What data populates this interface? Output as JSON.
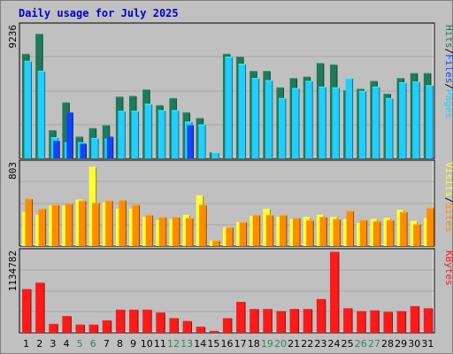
{
  "title": "Daily usage for July 2025",
  "colors": {
    "hits": "#1e7a5b",
    "files": "#21ceff",
    "pages": "#1243ff",
    "visits": "#ff8c00",
    "sites": "#ffff33",
    "kbytes": "#ff1a1a",
    "title": "#0000ff",
    "weekend_day": "#2e8b57",
    "weekday": "#000000",
    "panel_bg": "#c0c0c0",
    "grid": "#a7a7a7"
  },
  "chart_data": [
    {
      "type": "bar",
      "panel": "hits-files-pages",
      "ymax_label": "9236",
      "ymax": 9236,
      "legend": [
        "Hits",
        "/",
        "Files",
        "/",
        "Pages"
      ],
      "categories": [
        "1",
        "2",
        "3",
        "4",
        "5",
        "6",
        "7",
        "8",
        "9",
        "10",
        "11",
        "12",
        "13",
        "14",
        "15",
        "16",
        "17",
        "18",
        "19",
        "20",
        "21",
        "22",
        "23",
        "24",
        "25",
        "26",
        "27",
        "28",
        "29",
        "30",
        "31"
      ],
      "series": [
        {
          "name": "Hits",
          "values": [
            7300,
            8700,
            1950,
            3900,
            1500,
            2100,
            2300,
            4300,
            4350,
            4800,
            3700,
            4200,
            3200,
            2800,
            400,
            7300,
            7100,
            6100,
            6100,
            4950,
            5600,
            5700,
            6650,
            6550,
            4750,
            4850,
            5400,
            4500,
            5600,
            5950,
            5950
          ]
        },
        {
          "name": "Files",
          "values": [
            6800,
            6100,
            1450,
            1100,
            1100,
            1400,
            1350,
            3300,
            3300,
            3800,
            3350,
            3350,
            2550,
            2350,
            400,
            7100,
            6600,
            5600,
            5450,
            4200,
            4900,
            5400,
            5000,
            4950,
            5600,
            4700,
            5000,
            4200,
            5300,
            5350,
            5100
          ]
        },
        {
          "name": "Pages",
          "values": [
            0,
            0,
            1200,
            3200,
            1000,
            0,
            1500,
            0,
            0,
            0,
            0,
            0,
            2300,
            0,
            0,
            0,
            0,
            0,
            0,
            0,
            0,
            0,
            0,
            0,
            0,
            0,
            0,
            0,
            0,
            0,
            0
          ]
        }
      ]
    },
    {
      "type": "bar",
      "panel": "visits-sites",
      "ymax_label": "803",
      "ymax": 803,
      "legend": [
        "Visits",
        "/",
        "Sites"
      ],
      "categories": [
        "1",
        "2",
        "3",
        "4",
        "5",
        "6",
        "7",
        "8",
        "9",
        "10",
        "11",
        "12",
        "13",
        "14",
        "15",
        "16",
        "17",
        "18",
        "19",
        "20",
        "21",
        "22",
        "23",
        "24",
        "25",
        "26",
        "27",
        "28",
        "29",
        "30",
        "31"
      ],
      "series": [
        {
          "name": "Visits",
          "values": [
            460,
            360,
            400,
            410,
            440,
            420,
            440,
            445,
            400,
            300,
            280,
            280,
            270,
            400,
            50,
            180,
            230,
            300,
            300,
            300,
            270,
            250,
            280,
            260,
            340,
            250,
            240,
            250,
            330,
            210,
            370
          ]
        },
        {
          "name": "Sites",
          "values": [
            330,
            300,
            390,
            390,
            450,
            770,
            420,
            360,
            360,
            280,
            250,
            260,
            300,
            490,
            50,
            180,
            230,
            290,
            360,
            280,
            260,
            280,
            300,
            280,
            260,
            220,
            260,
            270,
            350,
            240,
            270
          ]
        }
      ]
    },
    {
      "type": "bar",
      "panel": "kbytes",
      "ymax_label": "1134782",
      "ymax": 1134782,
      "legend": [
        "KBytes"
      ],
      "categories": [
        "1",
        "2",
        "3",
        "4",
        "5",
        "6",
        "7",
        "8",
        "9",
        "10",
        "11",
        "12",
        "13",
        "14",
        "15",
        "16",
        "17",
        "18",
        "19",
        "20",
        "21",
        "22",
        "23",
        "24",
        "25",
        "26",
        "27",
        "28",
        "29",
        "30",
        "31"
      ],
      "series": [
        {
          "name": "KBytes",
          "values": [
            610000,
            700000,
            120000,
            230000,
            110000,
            110000,
            170000,
            320000,
            320000,
            320000,
            280000,
            200000,
            160000,
            80000,
            20000,
            200000,
            430000,
            330000,
            330000,
            300000,
            330000,
            330000,
            470000,
            1134782,
            340000,
            300000,
            310000,
            290000,
            300000,
            370000,
            340000
          ]
        }
      ]
    }
  ],
  "weekend_days": [
    5,
    6,
    12,
    13,
    19,
    20,
    26,
    27
  ]
}
